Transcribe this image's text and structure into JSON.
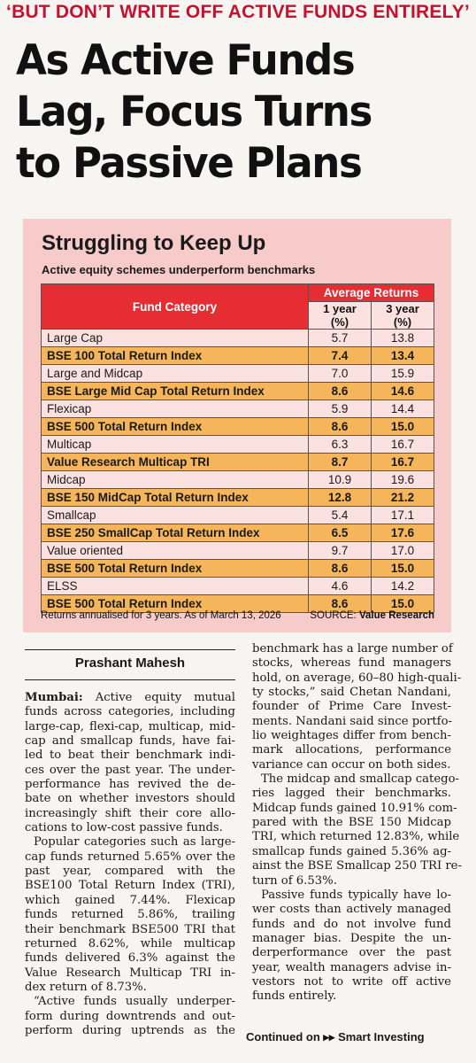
{
  "kicker": "‘BUT DON’T WRITE OFF ACTIVE FUNDS ENTIRELY’",
  "headline": [
    "As Active Funds",
    "Lag, Focus Turns",
    "to Passive Plans"
  ],
  "infobox": {
    "title": "Struggling to Keep Up",
    "subtitle": "Active equity schemes underperform benchmarks",
    "table": {
      "col_category": "Fund Category",
      "col_group": "Average Returns",
      "col_1y": "1 year (%)",
      "col_3y": "3 year (%)",
      "rows": [
        {
          "name": "Large Cap",
          "y1": "5.7",
          "y3": "13.8",
          "kind": "plain"
        },
        {
          "name": "BSE 100 Total Return Index",
          "y1": "7.4",
          "y3": "13.4",
          "kind": "bench"
        },
        {
          "name": "Large and Midcap",
          "y1": "7.0",
          "y3": "15.9",
          "kind": "plain"
        },
        {
          "name": "BSE Large Mid Cap Total Return Index",
          "y1": "8.6",
          "y3": "14.6",
          "kind": "bench"
        },
        {
          "name": "Flexicap",
          "y1": "5.9",
          "y3": "14.4",
          "kind": "plain"
        },
        {
          "name": "BSE 500 Total Return Index",
          "y1": "8.6",
          "y3": "15.0",
          "kind": "bench"
        },
        {
          "name": "Multicap",
          "y1": "6.3",
          "y3": "16.7",
          "kind": "plain"
        },
        {
          "name": "Value Research Multicap TRI",
          "y1": "8.7",
          "y3": "16.7",
          "kind": "bench"
        },
        {
          "name": "Midcap",
          "y1": "10.9",
          "y3": "19.6",
          "kind": "plain"
        },
        {
          "name": "BSE 150 MidCap Total Return Index",
          "y1": "12.8",
          "y3": "21.2",
          "kind": "bench"
        },
        {
          "name": "Smallcap",
          "y1": "5.4",
          "y3": "17.1",
          "kind": "plain"
        },
        {
          "name": "BSE 250 SmallCap Total Return Index",
          "y1": "6.5",
          "y3": "17.6",
          "kind": "bench"
        },
        {
          "name": "Value oriented",
          "y1": "9.7",
          "y3": "17.0",
          "kind": "plain"
        },
        {
          "name": "BSE 500 Total Return Index",
          "y1": "8.6",
          "y3": "15.0",
          "kind": "bench"
        },
        {
          "name": "ELSS",
          "y1": "4.6",
          "y3": "14.2",
          "kind": "plain"
        },
        {
          "name": "BSE 500 Total Return Index",
          "y1": "8.6",
          "y3": "15.0",
          "kind": "bench"
        }
      ]
    },
    "footnote": "Returns annualised for 3 years. As of March 13, 2026",
    "source_label": "SOURCE:",
    "source_name": "Value Research"
  },
  "byline": "Prashant Mahesh",
  "col1_lines": [
    {
      "t": "Mumbai: Active equity mutual",
      "dateline": "Mumbai:"
    },
    {
      "t": "funds across categories, including"
    },
    {
      "t": "large-cap, flexi-cap, multicap, mid-"
    },
    {
      "t": "cap and smallcap funds, have fai-"
    },
    {
      "t": "led to beat their benchmark indi-"
    },
    {
      "t": "ces over the past year. The under-"
    },
    {
      "t": "performance has revived the de-"
    },
    {
      "t": "bate on whether investors should"
    },
    {
      "t": "increasingly shift their core allo-"
    },
    {
      "t": "cations to low-cost passive funds.",
      "last": true
    },
    {
      "t": "Popular categories such as large-",
      "indent": true
    },
    {
      "t": "cap funds returned 5.65% over the"
    },
    {
      "t": "past year, compared with the"
    },
    {
      "t": "BSE100 Total Return Index (TRI),"
    },
    {
      "t": "which gained 7.44%. Flexicap"
    },
    {
      "t": "funds returned 5.86%, trailing"
    },
    {
      "t": "their benchmark BSE500 TRI that"
    },
    {
      "t": "returned 8.62%, while multicap"
    },
    {
      "t": "funds delivered 6.3% against the"
    },
    {
      "t": "Value Research Multicap TRI in-"
    },
    {
      "t": "dex return of 8.73%.",
      "last": true
    },
    {
      "t": "“Active funds usually underper-",
      "indent": true
    },
    {
      "t": "form during downtrends and out-"
    },
    {
      "t": "perform during uptrends as the"
    }
  ],
  "col2_lines": [
    {
      "t": "benchmark has a large number of"
    },
    {
      "t": "stocks, whereas fund managers"
    },
    {
      "t": "hold, on average, 60–80 high-quali-"
    },
    {
      "t": "ty stocks,” said Chetan Nandani,"
    },
    {
      "t": "founder of Prime Care Invest-"
    },
    {
      "t": "ments. Nandani said since portfo-"
    },
    {
      "t": "lio weightages differ from bench-"
    },
    {
      "t": "mark allocations, performance"
    },
    {
      "t": "variance can occur on both sides.",
      "last": true
    },
    {
      "t": "The midcap and smallcap catego-",
      "indent": true
    },
    {
      "t": "ries lagged their benchmarks."
    },
    {
      "t": "Midcap funds gained 10.91% com-"
    },
    {
      "t": "pared with the BSE 150 Midcap"
    },
    {
      "t": "TRI, which returned 12.83%, while"
    },
    {
      "t": "smallcap funds gained 5.36% ag-"
    },
    {
      "t": "ainst the BSE Smallcap 250 TRI re-"
    },
    {
      "t": "turn of 6.53%.",
      "last": true
    },
    {
      "t": "Passive funds typically have lo-",
      "indent": true
    },
    {
      "t": "wer costs than actively managed"
    },
    {
      "t": "funds and do not involve fund"
    },
    {
      "t": "manager bias. Despite the un-"
    },
    {
      "t": "derperformance over the past"
    },
    {
      "t": "year, wealth managers advise in-"
    },
    {
      "t": "vestors not to write off active"
    },
    {
      "t": "funds entirely.",
      "last": true
    }
  ],
  "continued": {
    "label": "Continued on",
    "arrow": "▸▸",
    "target": "Smart Investing"
  }
}
